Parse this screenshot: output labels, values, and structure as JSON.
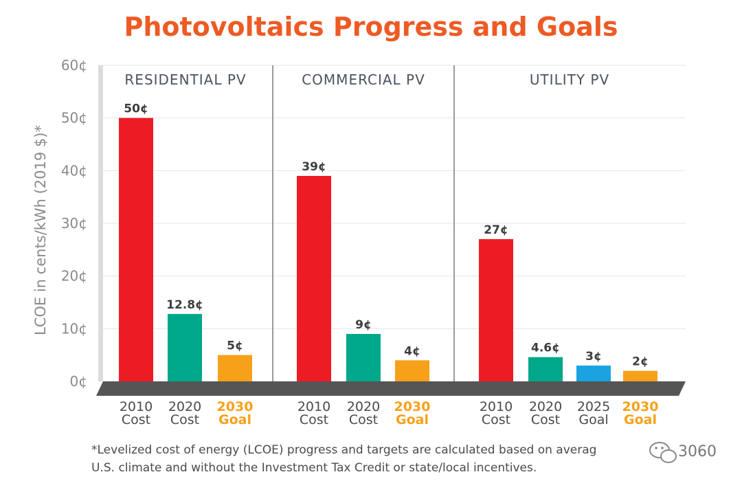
{
  "chart_data": {
    "type": "bar",
    "title": "Photovoltaics Progress and Goals",
    "ylabel": "LCOE in cents/kWh (2019 $)*",
    "ylim": [
      0,
      60
    ],
    "yticks": [
      "0¢",
      "10¢",
      "20¢",
      "30¢",
      "40¢",
      "50¢",
      "60¢"
    ],
    "grid": true,
    "panels": [
      {
        "name": "RESIDENTIAL PV",
        "bars": [
          {
            "category": [
              "2010",
              "Cost"
            ],
            "value": 50,
            "label": "50¢",
            "kind": "cost2010"
          },
          {
            "category": [
              "2020",
              "Cost"
            ],
            "value": 12.8,
            "label": "12.8¢",
            "kind": "cost2020"
          },
          {
            "category": [
              "2030",
              "Goal"
            ],
            "value": 5,
            "label": "5¢",
            "kind": "goal2030"
          }
        ]
      },
      {
        "name": "COMMERCIAL PV",
        "bars": [
          {
            "category": [
              "2010",
              "Cost"
            ],
            "value": 39,
            "label": "39¢",
            "kind": "cost2010"
          },
          {
            "category": [
              "2020",
              "Cost"
            ],
            "value": 9,
            "label": "9¢",
            "kind": "cost2020"
          },
          {
            "category": [
              "2030",
              "Goal"
            ],
            "value": 4,
            "label": "4¢",
            "kind": "goal2030"
          }
        ]
      },
      {
        "name": "UTILITY PV",
        "bars": [
          {
            "category": [
              "2010",
              "Cost"
            ],
            "value": 27,
            "label": "27¢",
            "kind": "cost2010"
          },
          {
            "category": [
              "2020",
              "Cost"
            ],
            "value": 4.6,
            "label": "4.6¢",
            "kind": "cost2020"
          },
          {
            "category": [
              "2025",
              "Goal"
            ],
            "value": 3,
            "label": "3¢",
            "kind": "goal2025"
          },
          {
            "category": [
              "2030",
              "Goal"
            ],
            "value": 2,
            "label": "2¢",
            "kind": "goal2030"
          }
        ]
      }
    ],
    "colors": {
      "cost2010": "#ed1c24",
      "cost2020": "#00a88a",
      "goal2025": "#1aa3e0",
      "goal2030": "#f7a11a",
      "goal_text": "#f7a11a",
      "cost_text": "#4a4a4a",
      "title": "#ee5a24",
      "base": "#555555"
    },
    "footnote": [
      "*Levelized cost of energy (LCOE) progress and targets are calculated based on averag",
      "U.S. climate and without the Investment Tax Credit or state/local incentives."
    ]
  },
  "watermark": {
    "text": "3060",
    "icon": "wechat-icon"
  }
}
